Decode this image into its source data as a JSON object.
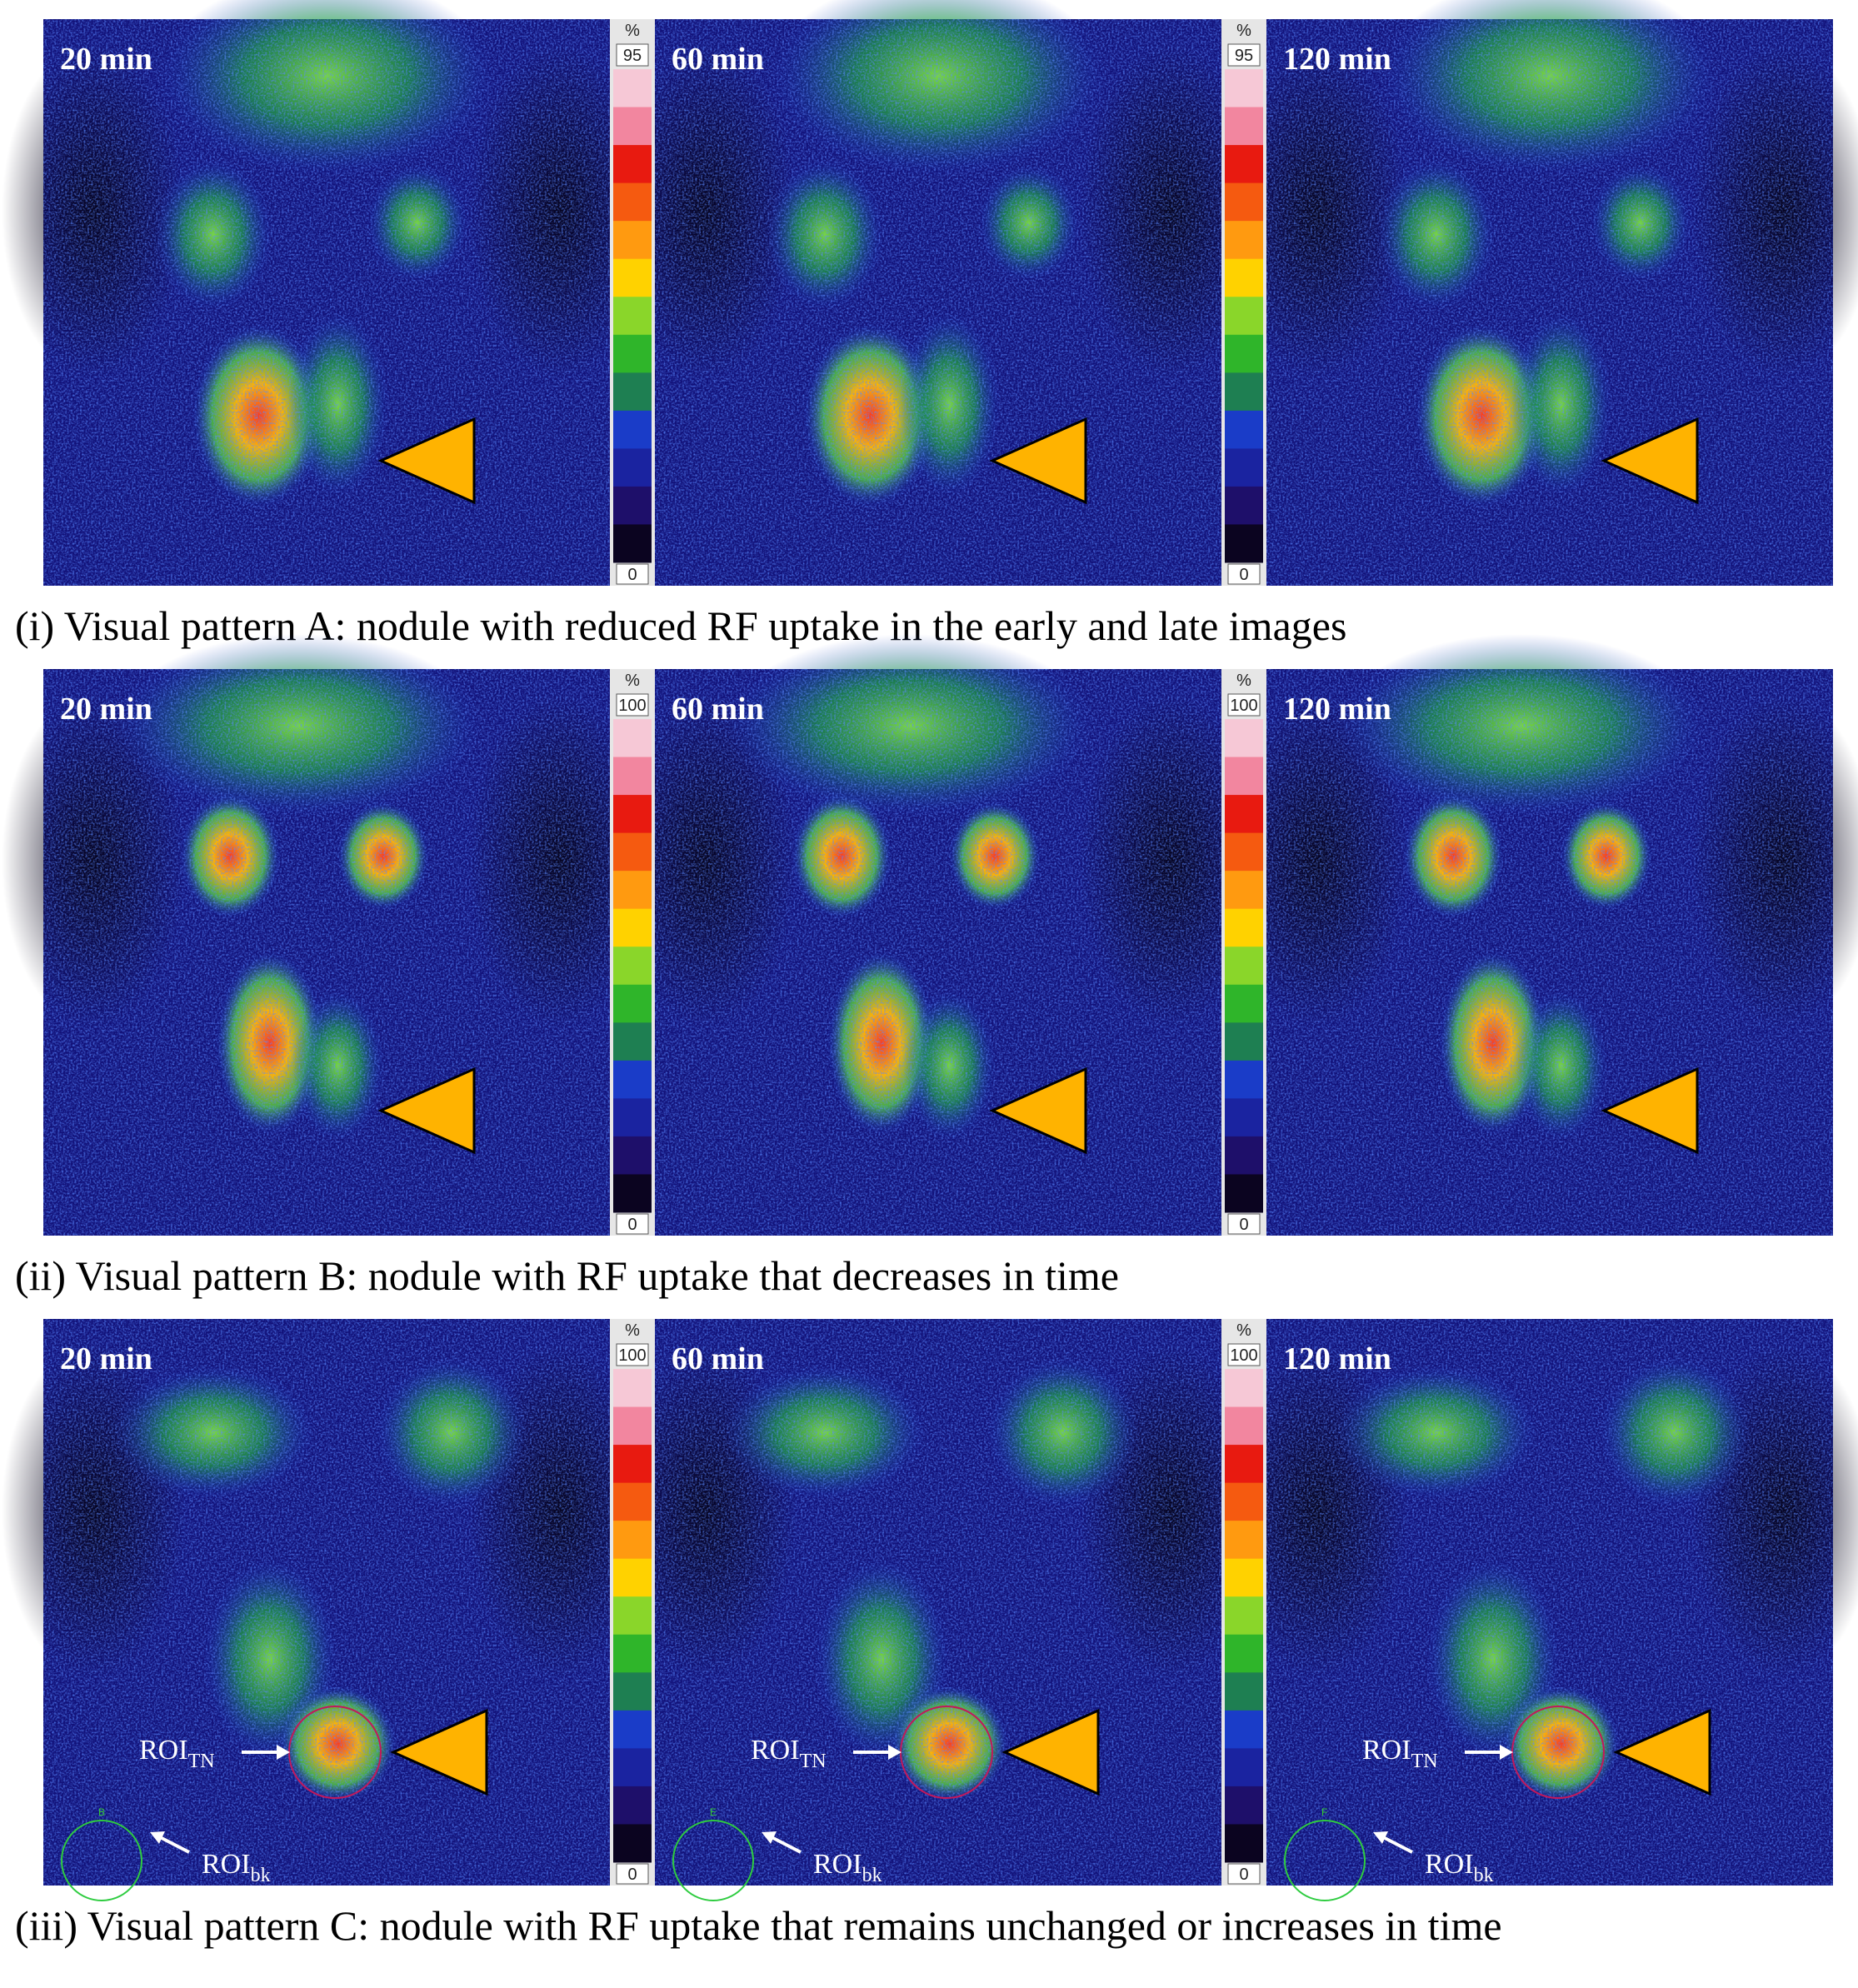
{
  "rows": [
    {
      "panels": [
        {
          "label": "20 min"
        },
        {
          "label": "60 min"
        },
        {
          "label": "120 min"
        }
      ],
      "scales": [
        {
          "unit": "%",
          "top": "95",
          "bottom": "0"
        },
        {
          "unit": "%",
          "top": "95",
          "bottom": "0"
        }
      ],
      "caption": "(i) Visual pattern A: nodule with reduced RF uptake in the early and late images"
    },
    {
      "panels": [
        {
          "label": "20 min"
        },
        {
          "label": "60 min"
        },
        {
          "label": "120 min"
        }
      ],
      "scales": [
        {
          "unit": "%",
          "top": "100",
          "bottom": "0"
        },
        {
          "unit": "%",
          "top": "100",
          "bottom": "0"
        }
      ],
      "caption": "(ii) Visual pattern B: nodule with RF uptake that decreases in time"
    },
    {
      "panels": [
        {
          "label": "20 min",
          "roi_tn": {
            "text": "ROI",
            "sub": "TN"
          },
          "roi_bk": {
            "text": "ROI",
            "sub": "bk"
          },
          "roi_marker": "B"
        },
        {
          "label": "60 min",
          "roi_tn": {
            "text": "ROI",
            "sub": "TN"
          },
          "roi_bk": {
            "text": "ROI",
            "sub": "bk"
          },
          "roi_marker": "E"
        },
        {
          "label": "120 min",
          "roi_tn": {
            "text": "ROI",
            "sub": "TN"
          },
          "roi_bk": {
            "text": "ROI",
            "sub": "bk"
          },
          "roi_marker": "F"
        }
      ],
      "scales": [
        {
          "unit": "%",
          "top": "100",
          "bottom": "0"
        },
        {
          "unit": "%",
          "top": "100",
          "bottom": "0"
        }
      ],
      "caption": "(iii) Visual pattern C: nodule with RF uptake that remains unchanged or increases in time"
    }
  ]
}
